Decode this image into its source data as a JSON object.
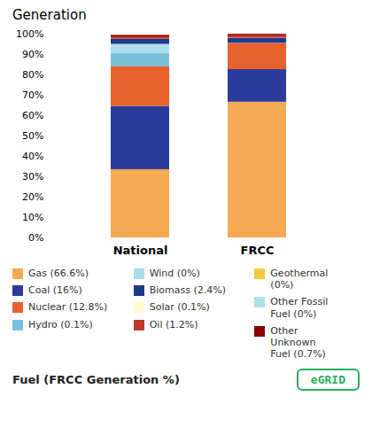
{
  "chart_data": {
    "type": "bar",
    "stacked": true,
    "title": "Generation",
    "xlabel": "Fuel (FRCC Generation %)",
    "categories": [
      "National",
      "FRCC"
    ],
    "series": [
      {
        "name": "Gas (66.6%)",
        "color": "#F5A952",
        "values": [
          33.5,
          66.6
        ]
      },
      {
        "name": "Coal (16%)",
        "color": "#2B3B9B",
        "values": [
          31.0,
          16.0
        ]
      },
      {
        "name": "Nuclear (12.8%)",
        "color": "#E8602C",
        "values": [
          19.5,
          12.8
        ]
      },
      {
        "name": "Hydro (0.1%)",
        "color": "#7BBFDA",
        "values": [
          6.5,
          0.1
        ]
      },
      {
        "name": "Wind (0%)",
        "color": "#AADCEE",
        "values": [
          4.5,
          0.0
        ]
      },
      {
        "name": "Biomass (2.4%)",
        "color": "#1E3A8A",
        "values": [
          2.4,
          2.4
        ]
      },
      {
        "name": "Solar (0.1%)",
        "color": "#FFFACD",
        "values": [
          0.1,
          0.1
        ]
      },
      {
        "name": "Oil (1.2%)",
        "color": "#C0392B",
        "values": [
          1.2,
          1.2
        ]
      },
      {
        "name": "Geothermal\n(0%)",
        "color": "#F5C842",
        "values": [
          0.0,
          0.0
        ]
      },
      {
        "name": "Other Fossil\nFuel (0%)",
        "color": "#B0E0E6",
        "values": [
          0.0,
          0.0
        ]
      },
      {
        "name": "Other\nUnknown\nFuel (0.7%)",
        "color": "#8B0000",
        "values": [
          0.7,
          0.7
        ]
      }
    ],
    "ylim": [
      0,
      100
    ],
    "yticks": [
      {
        "value": 0,
        "label": "0%"
      },
      {
        "value": 10,
        "label": "10%"
      },
      {
        "value": 20,
        "label": "20%"
      },
      {
        "value": 30,
        "label": "30%"
      },
      {
        "value": 40,
        "label": "40%"
      },
      {
        "value": 50,
        "label": "50%"
      },
      {
        "value": 60,
        "label": "60%"
      },
      {
        "value": 70,
        "label": "70%"
      },
      {
        "value": 80,
        "label": "80%"
      },
      {
        "value": 90,
        "label": "90%"
      },
      {
        "value": 100,
        "label": "100%"
      }
    ],
    "grid": false,
    "legend": "bottom",
    "annotations": [
      {
        "text": "eGRID",
        "color": "#27AE60"
      }
    ]
  }
}
